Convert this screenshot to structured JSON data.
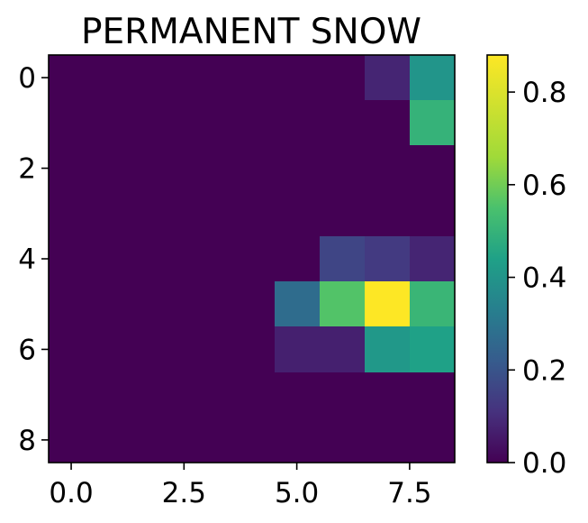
{
  "chart_data": {
    "type": "heatmap",
    "title": "PERMANENT SNOW",
    "xlabel": "",
    "ylabel": "",
    "n_rows": 9,
    "n_cols": 9,
    "xlim": [
      -0.5,
      8.5
    ],
    "ylim": [
      8.5,
      -0.5
    ],
    "x_ticks": [
      0.0,
      2.5,
      5.0,
      7.5
    ],
    "x_tick_labels": [
      "0.0",
      "2.5",
      "5.0",
      "7.5"
    ],
    "y_ticks": [
      0,
      2,
      4,
      6,
      8
    ],
    "y_tick_labels": [
      "0",
      "2",
      "4",
      "6",
      "8"
    ],
    "colormap": "viridis",
    "vmin": 0.0,
    "vmax": 0.88,
    "colorbar_ticks": [
      0.0,
      0.2,
      0.4,
      0.6,
      0.8
    ],
    "colorbar_tick_labels": [
      "0.0",
      "0.2",
      "0.4",
      "0.6",
      "0.8"
    ],
    "grid": false,
    "values": [
      [
        0,
        0,
        0,
        0,
        0,
        0,
        0,
        0.08,
        0.4
      ],
      [
        0,
        0,
        0,
        0,
        0,
        0,
        0,
        0,
        0.5
      ],
      [
        0,
        0,
        0,
        0,
        0,
        0,
        0,
        0,
        0
      ],
      [
        0,
        0,
        0,
        0,
        0,
        0,
        0,
        0,
        0
      ],
      [
        0,
        0,
        0,
        0,
        0,
        0,
        0.16,
        0.13,
        0.08
      ],
      [
        0,
        0,
        0,
        0,
        0,
        0.27,
        0.56,
        0.88,
        0.51
      ],
      [
        0,
        0,
        0,
        0,
        0,
        0.07,
        0.07,
        0.41,
        0.44
      ],
      [
        0,
        0,
        0,
        0,
        0,
        0,
        0,
        0,
        0
      ],
      [
        0,
        0,
        0,
        0,
        0,
        0,
        0,
        0,
        0
      ]
    ]
  }
}
